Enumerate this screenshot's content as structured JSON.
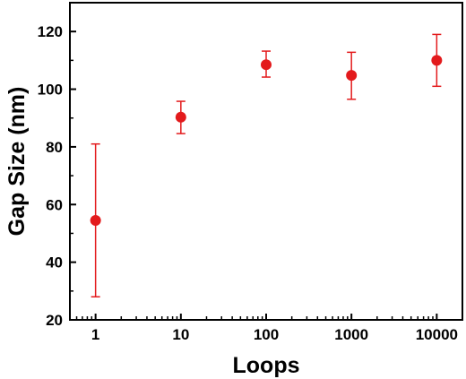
{
  "chart_data": {
    "type": "scatter",
    "title": "",
    "xlabel": "Loops",
    "ylabel": "Gap Size (nm)",
    "x_scale": "log",
    "xlim": [
      0.5,
      20000
    ],
    "ylim": [
      20,
      130
    ],
    "x_ticks": [
      1,
      10,
      100,
      1000,
      10000
    ],
    "x_tick_labels": [
      "1",
      "10",
      "100",
      "1000",
      "10000"
    ],
    "y_ticks": [
      20,
      40,
      60,
      80,
      100,
      120
    ],
    "y_tick_labels": [
      "20",
      "40",
      "60",
      "80",
      "100",
      "120"
    ],
    "grid": false,
    "legend": "none",
    "series": [
      {
        "color": "#e31a1c",
        "points": [
          {
            "x": 1,
            "y": 54.5,
            "err_low": 28,
            "err_high": 81
          },
          {
            "x": 10,
            "y": 90.3,
            "err_low": 84.6,
            "err_high": 95.8
          },
          {
            "x": 100,
            "y": 108.5,
            "err_low": 104.2,
            "err_high": 113.2
          },
          {
            "x": 1000,
            "y": 104.8,
            "err_low": 96.5,
            "err_high": 112.8
          },
          {
            "x": 10000,
            "y": 110,
            "err_low": 101,
            "err_high": 119
          }
        ]
      }
    ]
  }
}
